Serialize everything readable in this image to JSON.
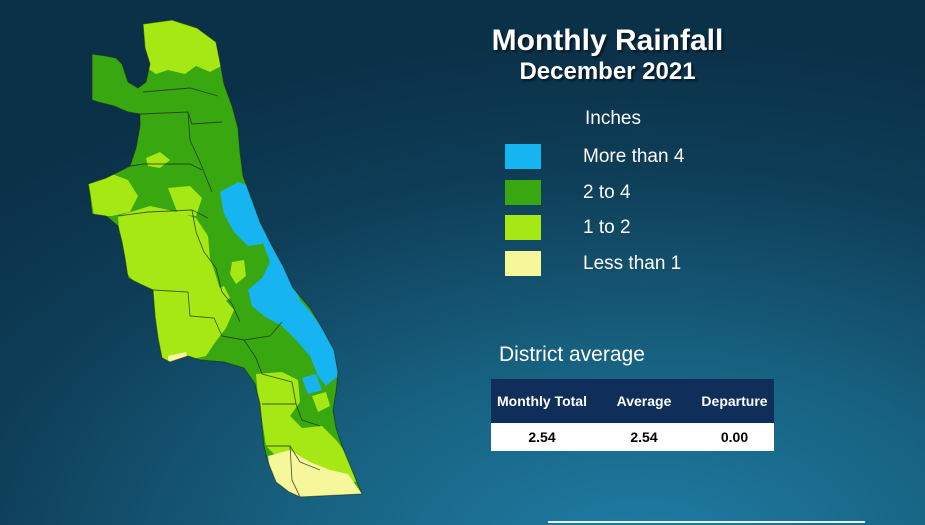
{
  "title": {
    "line1": "Monthly Rainfall",
    "line2": "December 2021"
  },
  "legend": {
    "title": "Inches",
    "items": [
      {
        "label": "More than 4",
        "color": "#16b4f0"
      },
      {
        "label": "2 to 4",
        "color": "#39a70f"
      },
      {
        "label": "1 to 2",
        "color": "#a6e813"
      },
      {
        "label": "Less than 1",
        "color": "#f6f79a"
      }
    ]
  },
  "district_average": {
    "title": "District average",
    "headers": {
      "monthly_total": "Monthly Total",
      "average": "Average",
      "departure": "Departure"
    },
    "values": {
      "monthly_total": "2.54",
      "average": "2.54",
      "departure": "0.00"
    }
  }
}
